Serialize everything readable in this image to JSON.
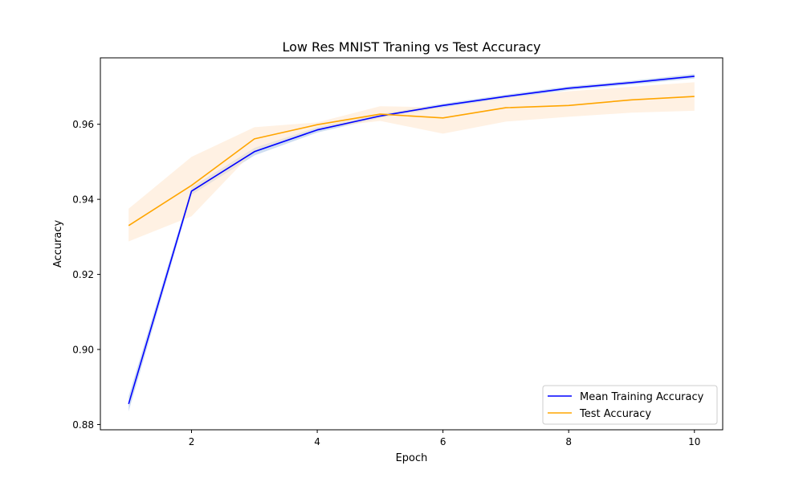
{
  "chart_data": {
    "type": "line",
    "title": "Low Res MNIST Traning vs Test Accuracy",
    "xlabel": "Epoch",
    "ylabel": "Accuracy",
    "x": [
      1,
      2,
      3,
      4,
      5,
      6,
      7,
      8,
      9,
      10
    ],
    "xlim": [
      0.55,
      10.45
    ],
    "ylim": [
      0.8786,
      0.9777
    ],
    "xticks": [
      2,
      4,
      6,
      8,
      10
    ],
    "yticks": [
      0.88,
      0.9,
      0.92,
      0.94,
      0.96
    ],
    "ytick_labels": [
      "0.88",
      "0.90",
      "0.92",
      "0.94",
      "0.96"
    ],
    "xtick_labels": [
      "2",
      "4",
      "6",
      "8",
      "10"
    ],
    "grid": false,
    "legend_position": "bottom-right",
    "series": [
      {
        "name": "Mean Training Accuracy",
        "color": "#0000ff",
        "band_color": "#aec7e8",
        "values": [
          0.8855,
          0.9422,
          0.9527,
          0.9585,
          0.9622,
          0.965,
          0.9674,
          0.9696,
          0.9711,
          0.9728
        ],
        "lower": [
          0.8835,
          0.9412,
          0.9517,
          0.9578,
          0.9617,
          0.9645,
          0.9669,
          0.9691,
          0.9706,
          0.9722
        ],
        "upper": [
          0.8875,
          0.9432,
          0.9537,
          0.9592,
          0.9627,
          0.9655,
          0.9679,
          0.9701,
          0.9716,
          0.9734
        ]
      },
      {
        "name": "Test Accuracy",
        "color": "#ffa500",
        "band_color": "#ffe5cc",
        "values": [
          0.933,
          0.9437,
          0.9561,
          0.9599,
          0.9627,
          0.9617,
          0.9644,
          0.965,
          0.9665,
          0.9674
        ],
        "lower": [
          0.9288,
          0.9355,
          0.953,
          0.9589,
          0.9609,
          0.9575,
          0.9607,
          0.962,
          0.9631,
          0.9636
        ],
        "upper": [
          0.9375,
          0.9513,
          0.9592,
          0.9605,
          0.9648,
          0.9645,
          0.9672,
          0.9688,
          0.97,
          0.9712
        ]
      }
    ]
  }
}
